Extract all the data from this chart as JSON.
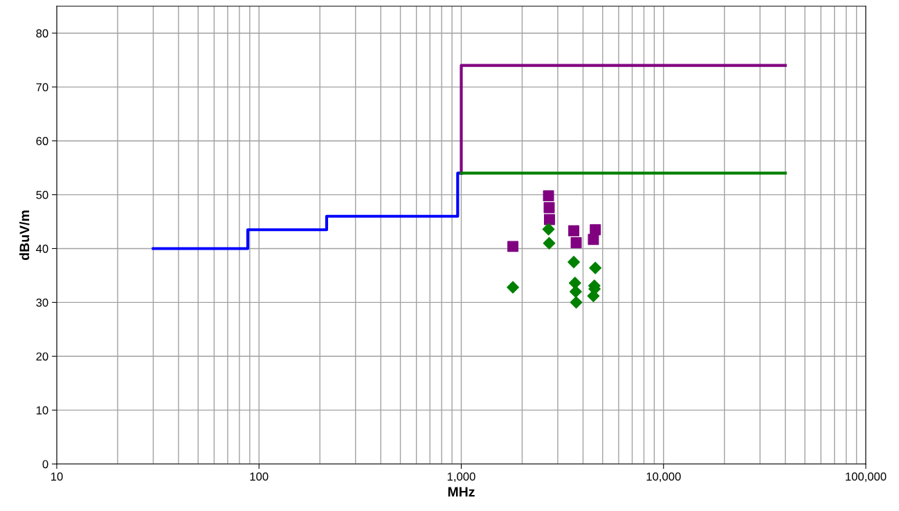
{
  "chart_data": {
    "type": "line",
    "xlabel": "MHz",
    "ylabel": "dBuV/m",
    "log": "x",
    "grid": true,
    "xlim": [
      10,
      100000
    ],
    "ylim": [
      0,
      85
    ],
    "xticks": [
      10,
      100,
      {
        "value": 1000,
        "label": "1,000"
      },
      {
        "value": 10000,
        "label": "10,000"
      },
      {
        "value": 100000,
        "label": "100,000"
      }
    ],
    "yticks": [
      0,
      10,
      20,
      30,
      40,
      50,
      60,
      70,
      80
    ],
    "series": [
      {
        "type": "step",
        "color": "#0000ff",
        "x": [
          30,
          88,
          216,
          960,
          1000
        ],
        "values": [
          40,
          43.5,
          46,
          54,
          54
        ]
      },
      {
        "color": "#800080",
        "x": [
          1000,
          1000,
          40000
        ],
        "values": [
          54,
          74,
          74
        ]
      },
      {
        "color": "#008000",
        "x": [
          1000,
          40000
        ],
        "values": [
          54,
          54
        ]
      },
      {
        "type": "scatter",
        "color": "#800080",
        "marker": "square",
        "x": [
          1800,
          2700,
          2720,
          2730,
          3600,
          3700,
          4600,
          4500
        ],
        "values": [
          40.4,
          49.8,
          47.6,
          45.4,
          43.3,
          41.1,
          43.5,
          41.7
        ]
      },
      {
        "type": "scatter",
        "color": "#008000",
        "marker": "diamond",
        "x": [
          1800,
          2700,
          2720,
          3600,
          3650,
          3680,
          3700,
          4600,
          4550,
          4560,
          4500
        ],
        "values": [
          32.8,
          43.6,
          41,
          37.5,
          33.6,
          32,
          30,
          36.4,
          33.1,
          32.5,
          31.2
        ]
      }
    ]
  }
}
